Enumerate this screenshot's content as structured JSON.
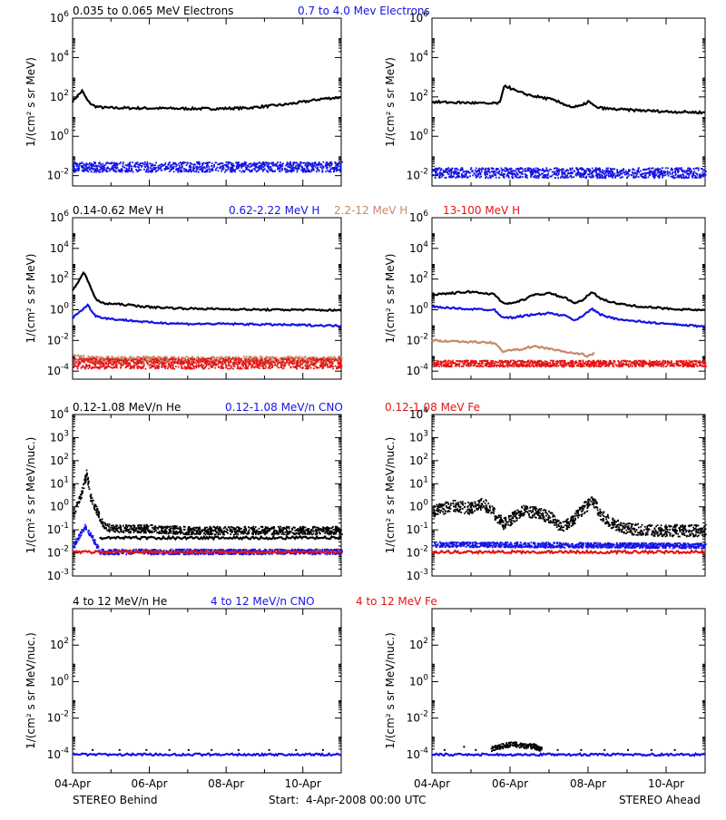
{
  "colors": {
    "black": "#000000",
    "blue": "#1414e6",
    "tan": "#c8886a",
    "red": "#e61414"
  },
  "footer": {
    "left": "STEREO Behind",
    "center": "Start:  4-Apr-2008 00:00 UTC",
    "right": "STEREO Ahead"
  },
  "chart_data": [
    {
      "id": "electrons",
      "type": "scatter",
      "ylabel": "1/(cm² s sr MeV)",
      "yscale": "log",
      "ylim": [
        0.003,
        1000000
      ],
      "yticks": [
        {
          "value": 0.01,
          "mant": "10",
          "exp": "-2"
        },
        {
          "value": 1,
          "mant": "10",
          "exp": "0"
        },
        {
          "value": 100,
          "mant": "10",
          "exp": "2"
        },
        {
          "value": 10000,
          "mant": "10",
          "exp": "4"
        },
        {
          "value": 1000000,
          "mant": "10",
          "exp": "6"
        }
      ],
      "legend": [
        {
          "label": "0.035 to 0.065 MeV Electrons",
          "color": "#000000"
        },
        {
          "label": "0.7 to 4.0 Mev Electrons",
          "color": "#1414e6"
        }
      ],
      "panels": [
        {
          "spacecraft": "STEREO Behind",
          "series": [
            {
              "name": "0.035 to 0.065 MeV Electrons",
              "color": "#000000",
              "style": "line",
              "x": [
                4.0,
                4.1,
                4.25,
                4.4,
                4.55,
                4.7,
                4.9,
                5.5,
                6.5,
                7.5,
                8.5,
                9.5,
                10.0,
                10.5,
                11.0
              ],
              "y": [
                60,
                100,
                200,
                60,
                35,
                30,
                28,
                27,
                26,
                25,
                27,
                40,
                55,
                80,
                95
              ]
            },
            {
              "name": "0.7 to 4.0 Mev Electrons",
              "color": "#1414e6",
              "style": "band",
              "x": [
                4.0,
                11.0
              ],
              "y": [
                0.03,
                0.03
              ],
              "spread": 1.8
            }
          ]
        },
        {
          "spacecraft": "STEREO Ahead",
          "series": [
            {
              "name": "0.035 to 0.065 MeV Electrons",
              "color": "#000000",
              "style": "line",
              "x": [
                4.0,
                5.0,
                5.5,
                5.75,
                5.85,
                6.2,
                6.6,
                7.0,
                7.3,
                7.6,
                7.85,
                8.0,
                8.2,
                8.5,
                9.0,
                10.0,
                11.0
              ],
              "y": [
                55,
                50,
                45,
                50,
                400,
                180,
                110,
                80,
                50,
                30,
                35,
                60,
                30,
                25,
                22,
                18,
                16
              ]
            },
            {
              "name": "0.7 to 4.0 Mev Electrons",
              "color": "#1414e6",
              "style": "band",
              "x": [
                4.0,
                11.0
              ],
              "y": [
                0.015,
                0.015
              ],
              "spread": 1.8
            }
          ]
        }
      ]
    },
    {
      "id": "protons",
      "type": "scatter",
      "ylabel": "1/(cm² s sr MeV)",
      "yscale": "log",
      "ylim": [
        3e-05,
        1000000
      ],
      "yticks": [
        {
          "value": 0.0001,
          "mant": "10",
          "exp": "-4"
        },
        {
          "value": 0.01,
          "mant": "10",
          "exp": "-2"
        },
        {
          "value": 1,
          "mant": "10",
          "exp": "0"
        },
        {
          "value": 100,
          "mant": "10",
          "exp": "2"
        },
        {
          "value": 10000,
          "mant": "10",
          "exp": "4"
        },
        {
          "value": 1000000,
          "mant": "10",
          "exp": "6"
        }
      ],
      "legend": [
        {
          "label": "0.14-0.62 MeV H",
          "color": "#000000"
        },
        {
          "label": "0.62-2.22 MeV H",
          "color": "#1414e6"
        },
        {
          "label": "2.2-12 MeV H",
          "color": "#c8886a"
        },
        {
          "label": "13-100 MeV H",
          "color": "#e61414"
        }
      ],
      "panels": [
        {
          "spacecraft": "STEREO Behind",
          "series": [
            {
              "name": "0.14-0.62 MeV H",
              "color": "#000000",
              "style": "line",
              "x": [
                4.0,
                4.15,
                4.3,
                4.45,
                4.6,
                4.8,
                5.0,
                5.5,
                6.0,
                7.0,
                8.0,
                9.0,
                10.0,
                11.0
              ],
              "y": [
                20,
                60,
                300,
                40,
                5,
                2.5,
                2.5,
                2.0,
                1.5,
                1.2,
                1.1,
                1.0,
                1.0,
                0.9
              ]
            },
            {
              "name": "0.62-2.22 MeV H",
              "color": "#1414e6",
              "style": "line",
              "x": [
                4.0,
                4.2,
                4.4,
                4.6,
                4.8,
                5.0,
                5.5,
                6.0,
                7.0,
                8.0,
                9.0,
                10.0,
                11.0
              ],
              "y": [
                0.3,
                0.8,
                2.0,
                0.4,
                0.3,
                0.25,
                0.2,
                0.15,
                0.12,
                0.12,
                0.11,
                0.1,
                0.09
              ]
            },
            {
              "name": "2.2-12 MeV H",
              "color": "#c8886a",
              "style": "band",
              "x": [
                4.0,
                4.5,
                11.0
              ],
              "y": [
                0.0008,
                0.0006,
                0.0006
              ],
              "spread": 1.7
            },
            {
              "name": "13-100 MeV H",
              "color": "#e61414",
              "style": "band",
              "x": [
                4.0,
                11.0
              ],
              "y": [
                0.00035,
                0.00035
              ],
              "spread": 2.2
            }
          ]
        },
        {
          "spacecraft": "STEREO Ahead",
          "series": [
            {
              "name": "0.14-0.62 MeV H",
              "color": "#000000",
              "style": "line",
              "x": [
                4.0,
                4.5,
                5.0,
                5.6,
                5.8,
                6.0,
                6.3,
                6.6,
                7.0,
                7.4,
                7.7,
                7.9,
                8.1,
                8.3,
                8.6,
                9.0,
                9.5,
                10.0,
                11.0
              ],
              "y": [
                10,
                12,
                15,
                10,
                3,
                2.5,
                4,
                9,
                12,
                6,
                2.5,
                5,
                15,
                6,
                3,
                2,
                1.5,
                1.2,
                0.9
              ]
            },
            {
              "name": "0.62-2.22 MeV H",
              "color": "#1414e6",
              "style": "line",
              "x": [
                4.0,
                4.5,
                5.0,
                5.6,
                5.8,
                6.0,
                6.5,
                7.0,
                7.4,
                7.7,
                7.9,
                8.1,
                8.3,
                8.6,
                9.0,
                10.0,
                11.0
              ],
              "y": [
                1.5,
                1.3,
                1.1,
                1.0,
                0.35,
                0.3,
                0.45,
                0.6,
                0.4,
                0.2,
                0.5,
                1.2,
                0.5,
                0.3,
                0.2,
                0.12,
                0.08
              ]
            },
            {
              "name": "2.2-12 MeV H",
              "color": "#c8886a",
              "style": "line",
              "x": [
                4.0,
                4.5,
                5.0,
                5.6,
                5.8,
                6.2,
                6.6,
                7.0,
                7.3,
                7.6,
                7.9,
                8.0,
                8.15
              ],
              "y": [
                0.01,
                0.009,
                0.008,
                0.007,
                0.002,
                0.0025,
                0.004,
                0.003,
                0.002,
                0.0015,
                0.0012,
                0.0009,
                0.0015
              ]
            },
            {
              "name": "13-100 MeV H",
              "color": "#e61414",
              "style": "band",
              "x": [
                4.0,
                11.0
              ],
              "y": [
                0.00035,
                0.00035
              ],
              "spread": 1.6
            }
          ]
        }
      ]
    },
    {
      "id": "heavy-ions-low",
      "type": "scatter",
      "ylabel": "1/(cm² s sr MeV/nuc.)",
      "yscale": "log",
      "ylim": [
        0.001,
        10000
      ],
      "yticks": [
        {
          "value": 0.001,
          "mant": "10",
          "exp": "-3"
        },
        {
          "value": 0.01,
          "mant": "10",
          "exp": "-2"
        },
        {
          "value": 0.1,
          "mant": "10",
          "exp": "-1"
        },
        {
          "value": 1,
          "mant": "10",
          "exp": "0"
        },
        {
          "value": 10,
          "mant": "10",
          "exp": "1"
        },
        {
          "value": 100,
          "mant": "10",
          "exp": "2"
        },
        {
          "value": 1000,
          "mant": "10",
          "exp": "3"
        },
        {
          "value": 10000,
          "mant": "10",
          "exp": "4"
        }
      ],
      "legend": [
        {
          "label": "0.12-1.08 MeV/n He",
          "color": "#000000"
        },
        {
          "label": "0.12-1.08 MeV/n CNO",
          "color": "#1414e6"
        },
        {
          "label": "0.12-1.08 MeV Fe",
          "color": "#e61414"
        }
      ],
      "panels": [
        {
          "spacecraft": "STEREO Behind",
          "series": [
            {
              "name": "0.12-1.08 MeV/n He",
              "color": "#000000",
              "style": "band",
              "x": [
                4.0,
                4.2,
                4.35,
                4.45,
                4.6,
                4.8,
                5.0,
                6.0,
                7.0,
                8.0,
                9.0,
                10.0,
                11.0
              ],
              "y": [
                0.5,
                3,
                30,
                3,
                0.8,
                0.15,
                0.12,
                0.12,
                0.1,
                0.1,
                0.1,
                0.1,
                0.1
              ],
              "spread": 1.5
            },
            {
              "name": "0.12-1.08 MeV/n He (floor)",
              "color": "#000000",
              "style": "line",
              "x": [
                4.7,
                11.0
              ],
              "y": [
                0.045,
                0.045
              ]
            },
            {
              "name": "0.12-1.08 MeV/n CNO",
              "color": "#1414e6",
              "style": "band",
              "x": [
                4.0,
                4.3,
                4.5,
                4.7,
                11.0
              ],
              "y": [
                0.02,
                0.15,
                0.05,
                0.012,
                0.012
              ],
              "spread": 1.3
            },
            {
              "name": "0.12-1.08 MeV Fe",
              "color": "#e61414",
              "style": "line",
              "x": [
                4.0,
                11.0
              ],
              "y": [
                0.011,
                0.011
              ]
            }
          ]
        },
        {
          "spacecraft": "STEREO Ahead",
          "series": [
            {
              "name": "0.12-1.08 MeV/n He",
              "color": "#000000",
              "style": "band",
              "x": [
                4.0,
                4.5,
                5.0,
                5.3,
                5.6,
                5.8,
                6.0,
                6.3,
                6.6,
                7.0,
                7.3,
                7.6,
                7.9,
                8.1,
                8.3,
                8.6,
                9.0,
                9.5,
                10.0,
                11.0
              ],
              "y": [
                0.7,
                1.2,
                0.9,
                1.5,
                0.5,
                0.2,
                0.3,
                0.8,
                0.6,
                0.4,
                0.15,
                0.3,
                1.0,
                2.0,
                0.5,
                0.2,
                0.12,
                0.1,
                0.1,
                0.1
              ],
              "spread": 1.8
            },
            {
              "name": "0.12-1.08 MeV/n CNO",
              "color": "#1414e6",
              "style": "band",
              "x": [
                4.0,
                11.0
              ],
              "y": [
                0.025,
                0.022
              ],
              "spread": 1.3
            },
            {
              "name": "0.12-1.08 MeV Fe",
              "color": "#e61414",
              "style": "line",
              "x": [
                4.0,
                11.0
              ],
              "y": [
                0.011,
                0.011
              ]
            }
          ]
        }
      ]
    },
    {
      "id": "heavy-ions-high",
      "type": "scatter",
      "ylabel": "1/(cm² s sr MeV/nuc.)",
      "yscale": "log",
      "ylim": [
        1e-05,
        10000
      ],
      "yticks": [
        {
          "value": 0.0001,
          "mant": "10",
          "exp": "-4"
        },
        {
          "value": 0.01,
          "mant": "10",
          "exp": "-2"
        },
        {
          "value": 1,
          "mant": "10",
          "exp": "0"
        },
        {
          "value": 100,
          "mant": "10",
          "exp": "2"
        }
      ],
      "legend": [
        {
          "label": "4 to 12 MeV/n He",
          "color": "#000000"
        },
        {
          "label": "4 to 12 MeV/n CNO",
          "color": "#1414e6"
        },
        {
          "label": "4 to 12 MeV Fe",
          "color": "#e61414"
        }
      ],
      "panels": [
        {
          "spacecraft": "STEREO Behind",
          "series": [
            {
              "name": "4 to 12 MeV/n He",
              "color": "#000000",
              "style": "sparse",
              "x": [
                4.5,
                5.2,
                5.9,
                6.5,
                7.0,
                7.6,
                8.3,
                9.1,
                9.8,
                10.5
              ],
              "y": [
                0.0002,
                0.0002,
                0.0002,
                0.0002,
                0.0002,
                0.0002,
                0.0002,
                0.0002,
                0.0002,
                0.0002
              ]
            },
            {
              "name": "4 to 12 MeV/n CNO",
              "color": "#1414e6",
              "style": "line",
              "x": [
                4.0,
                11.0
              ],
              "y": [
                0.0001,
                0.0001
              ]
            }
          ]
        },
        {
          "spacecraft": "STEREO Ahead",
          "series": [
            {
              "name": "4 to 12 MeV/n He",
              "color": "#000000",
              "style": "band",
              "x": [
                5.5,
                6.0,
                6.6,
                6.8
              ],
              "y": [
                0.00022,
                0.0004,
                0.0003,
                0.00022
              ],
              "spread": 1.4
            },
            {
              "name": "4 to 12 MeV/n He (sparse)",
              "color": "#000000",
              "style": "sparse",
              "x": [
                4.3,
                4.8,
                5.1,
                7.2,
                7.8,
                8.4,
                9.0,
                9.6,
                10.2
              ],
              "y": [
                0.0002,
                0.0003,
                0.0002,
                0.0002,
                0.0002,
                0.0002,
                0.0002,
                0.0002,
                0.0002
              ]
            },
            {
              "name": "4 to 12 MeV/n CNO",
              "color": "#1414e6",
              "style": "line",
              "x": [
                4.0,
                11.0
              ],
              "y": [
                0.0001,
                0.0001
              ]
            }
          ]
        }
      ]
    }
  ],
  "xaxis": {
    "xlim": [
      4.0,
      11.0
    ],
    "ticks": [
      {
        "value": 4,
        "label": "04-Apr"
      },
      {
        "value": 6,
        "label": "06-Apr"
      },
      {
        "value": 8,
        "label": "08-Apr"
      },
      {
        "value": 10,
        "label": "10-Apr"
      }
    ]
  }
}
